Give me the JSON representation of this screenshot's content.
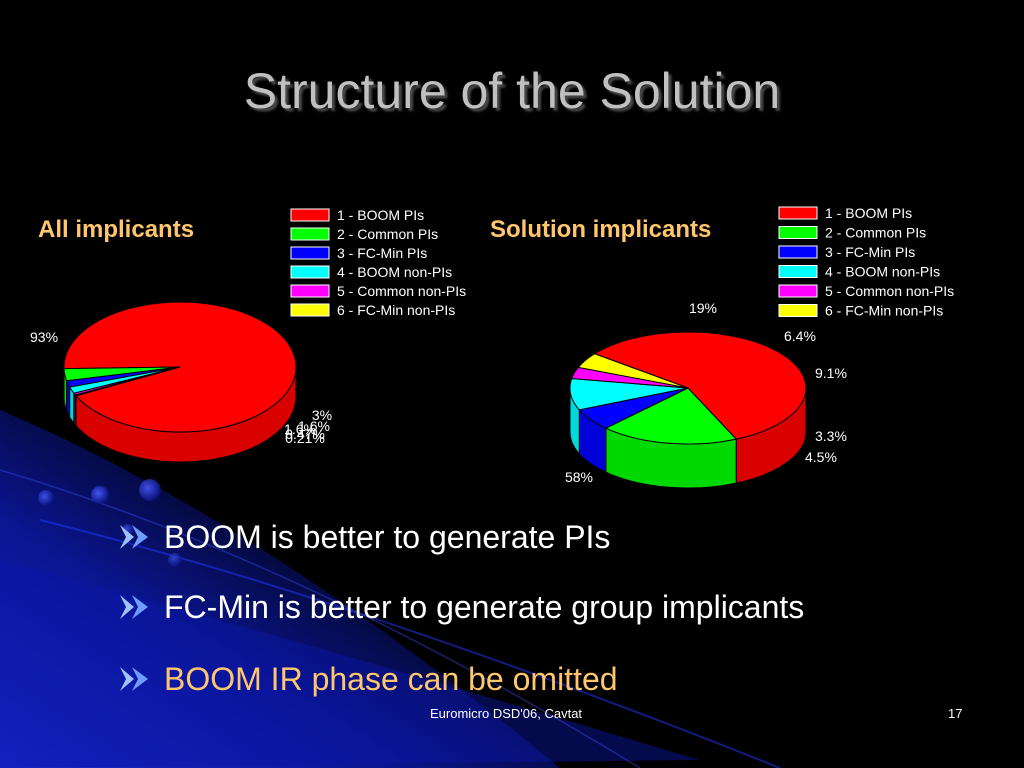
{
  "slide": {
    "title": "Structure of the Solution",
    "footer_center": "Euromicro DSD'06, Cavtat",
    "page_number": "17"
  },
  "colors": {
    "heading": "#ffc66e",
    "background": "#000000"
  },
  "chart_data": [
    {
      "type": "pie",
      "title": "All implicants",
      "categories": [
        "1 - BOOM PIs",
        "2 - Common PIs",
        "3 - FC-Min PIs",
        "4 - BOOM non-PIs",
        "5 - Common non-PIs",
        "6 - FC-Min non-PIs"
      ],
      "values": [
        93,
        3,
        1.6,
        1.6,
        0.47,
        0.21
      ],
      "labels": [
        "93%",
        "3%",
        "1.6%",
        "1.6%",
        "0.47%",
        "0.21%"
      ],
      "colors": [
        "#ff0000",
        "#00ff00",
        "#0000ff",
        "#00ffff",
        "#ff00ff",
        "#ffff00"
      ],
      "legend_position": "top-right",
      "style": "3d"
    },
    {
      "type": "pie",
      "title": "Solution implicants",
      "categories": [
        "1 - BOOM PIs",
        "2 - Common PIs",
        "3 - FC-Min PIs",
        "4 - BOOM non-PIs",
        "5 - Common non-PIs",
        "6 - FC-Min non-PIs"
      ],
      "values": [
        58,
        19,
        6.4,
        9.1,
        3.3,
        4.5
      ],
      "labels": [
        "58%",
        "19%",
        "6.4%",
        "9.1%",
        "3.3%",
        "4.5%"
      ],
      "colors": [
        "#ff0000",
        "#00ff00",
        "#0000ff",
        "#00ffff",
        "#ff00ff",
        "#ffff00"
      ],
      "legend_position": "top-right",
      "style": "3d"
    }
  ],
  "bullets": [
    {
      "text": "BOOM is better to generate PIs",
      "highlight": false
    },
    {
      "text": "FC-Min is better to generate group implicants",
      "highlight": false
    },
    {
      "text": "BOOM IR phase can be omitted",
      "highlight": true
    }
  ]
}
